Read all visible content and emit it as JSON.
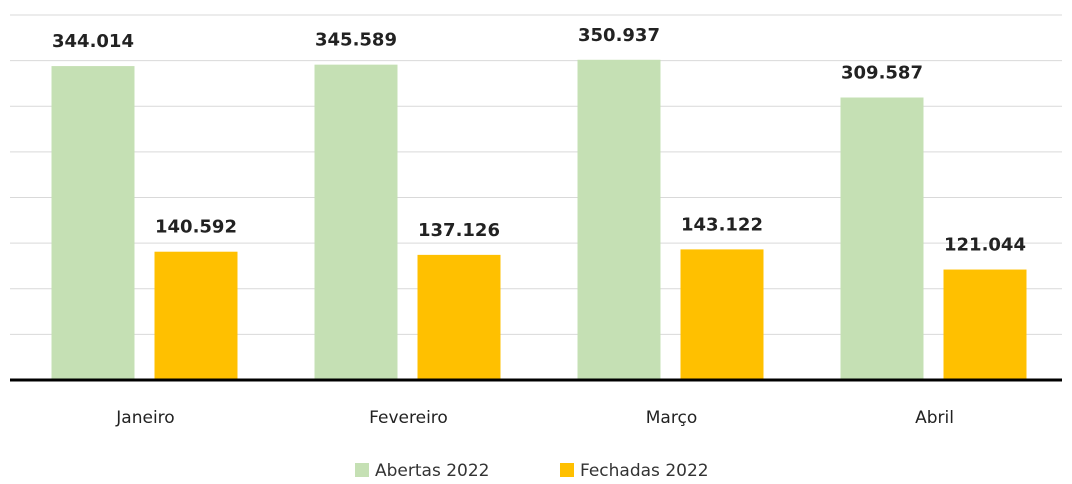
{
  "chart_data": {
    "type": "bar",
    "categories": [
      "Janeiro",
      "Fevereiro",
      "Março",
      "Abril"
    ],
    "series": [
      {
        "name": "Abertas 2022",
        "color": "#c5e0b4",
        "values": [
          344014,
          345589,
          350937,
          309587
        ],
        "value_labels": [
          "344.014",
          "345.589",
          "350.937",
          "309.587"
        ]
      },
      {
        "name": "Fechadas 2022",
        "color": "#ffc000",
        "values": [
          140592,
          137126,
          143122,
          121044
        ],
        "value_labels": [
          "140.592",
          "137.126",
          "143.122",
          "121.044"
        ]
      }
    ],
    "ylim": [
      0,
      400000
    ],
    "yticks": [
      0,
      50000,
      100000,
      150000,
      200000,
      250000,
      300000,
      350000,
      400000
    ],
    "grid": true,
    "legend": "bottom"
  }
}
